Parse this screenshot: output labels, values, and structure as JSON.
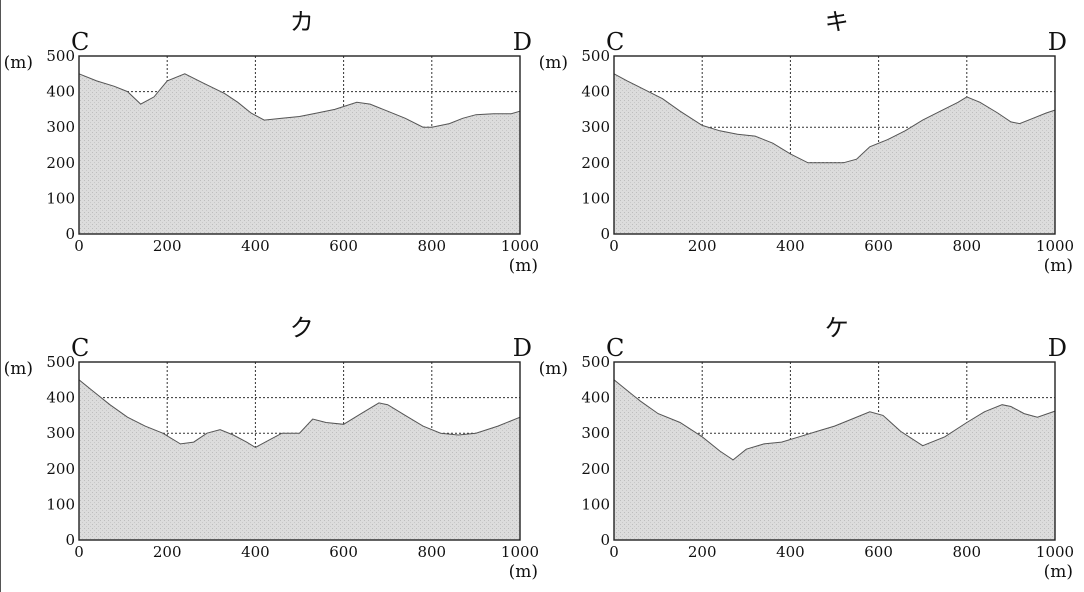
{
  "chart_data": [
    {
      "type": "area",
      "title": "カ",
      "start_label": "C",
      "end_label": "D",
      "ylabel": "(m)",
      "xlabel": "(m)",
      "xlim": [
        0,
        1000
      ],
      "ylim": [
        0,
        500
      ],
      "x_ticks": [
        "0",
        "200",
        "400",
        "600",
        "800",
        "1000"
      ],
      "y_ticks": [
        "500",
        "400",
        "300",
        "200",
        "100",
        "0"
      ],
      "grid": true,
      "x": [
        0,
        40,
        80,
        110,
        140,
        170,
        200,
        240,
        280,
        330,
        360,
        390,
        420,
        460,
        500,
        540,
        580,
        630,
        660,
        700,
        740,
        780,
        800,
        840,
        870,
        900,
        940,
        980,
        1000
      ],
      "y": [
        450,
        430,
        415,
        400,
        365,
        385,
        430,
        450,
        425,
        395,
        370,
        340,
        320,
        325,
        330,
        340,
        350,
        370,
        365,
        345,
        325,
        300,
        300,
        310,
        325,
        335,
        338,
        338,
        345
      ]
    },
    {
      "type": "area",
      "title": "キ",
      "start_label": "C",
      "end_label": "D",
      "ylabel": "(m)",
      "xlabel": "(m)",
      "xlim": [
        0,
        1000
      ],
      "ylim": [
        0,
        500
      ],
      "x_ticks": [
        "0",
        "200",
        "400",
        "600",
        "800",
        "1000"
      ],
      "y_ticks": [
        "500",
        "400",
        "300",
        "200",
        "100",
        "0"
      ],
      "grid": true,
      "x": [
        0,
        30,
        70,
        110,
        150,
        200,
        240,
        280,
        320,
        360,
        400,
        440,
        480,
        520,
        550,
        580,
        620,
        660,
        700,
        740,
        780,
        800,
        830,
        870,
        900,
        920,
        950,
        980,
        1000
      ],
      "y": [
        450,
        430,
        405,
        380,
        345,
        305,
        290,
        280,
        275,
        255,
        225,
        200,
        200,
        200,
        210,
        245,
        265,
        290,
        320,
        345,
        370,
        385,
        370,
        340,
        315,
        310,
        325,
        340,
        348
      ]
    },
    {
      "type": "area",
      "title": "ク",
      "start_label": "C",
      "end_label": "D",
      "ylabel": "(m)",
      "xlabel": "(m)",
      "xlim": [
        0,
        1000
      ],
      "ylim": [
        0,
        500
      ],
      "x_ticks": [
        "0",
        "200",
        "400",
        "600",
        "800",
        "1000"
      ],
      "y_ticks": [
        "500",
        "400",
        "300",
        "200",
        "100",
        "0"
      ],
      "grid": true,
      "x": [
        0,
        30,
        70,
        110,
        150,
        190,
        230,
        260,
        290,
        320,
        350,
        380,
        400,
        430,
        460,
        500,
        530,
        560,
        600,
        640,
        680,
        700,
        740,
        780,
        820,
        860,
        900,
        950,
        1000
      ],
      "y": [
        450,
        420,
        380,
        345,
        320,
        300,
        270,
        275,
        300,
        310,
        295,
        275,
        260,
        280,
        300,
        300,
        340,
        330,
        325,
        355,
        385,
        380,
        350,
        320,
        300,
        295,
        300,
        320,
        345
      ]
    },
    {
      "type": "area",
      "title": "ケ",
      "start_label": "C",
      "end_label": "D",
      "ylabel": "(m)",
      "xlabel": "(m)",
      "xlim": [
        0,
        1000
      ],
      "ylim": [
        0,
        500
      ],
      "x_ticks": [
        "0",
        "200",
        "400",
        "600",
        "800",
        "1000"
      ],
      "y_ticks": [
        "500",
        "400",
        "300",
        "200",
        "100",
        "0"
      ],
      "grid": true,
      "x": [
        0,
        30,
        60,
        100,
        150,
        200,
        240,
        270,
        300,
        340,
        380,
        420,
        460,
        500,
        540,
        580,
        610,
        650,
        700,
        750,
        800,
        840,
        880,
        900,
        930,
        960,
        1000
      ],
      "y": [
        450,
        420,
        390,
        355,
        330,
        290,
        250,
        225,
        255,
        270,
        275,
        290,
        305,
        320,
        340,
        360,
        350,
        305,
        265,
        290,
        330,
        360,
        380,
        375,
        355,
        345,
        362
      ]
    }
  ]
}
